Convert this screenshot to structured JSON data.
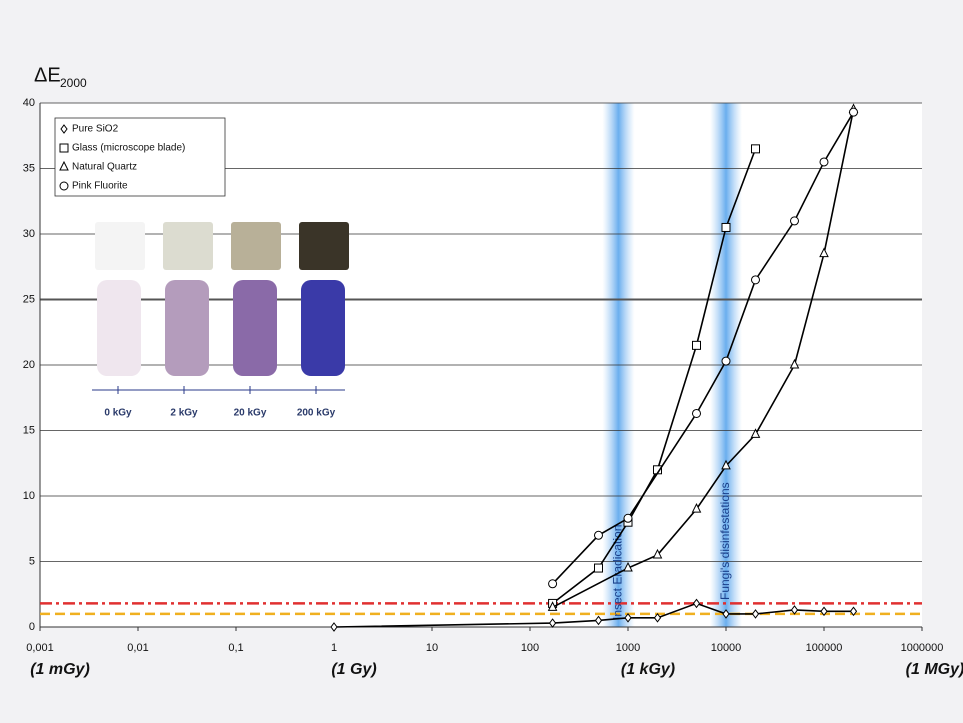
{
  "chart_data": {
    "type": "scatter",
    "ylabel": "ΔE",
    "ylabel_subscript": "2000",
    "xscale": "log",
    "xlim": [
      0.001,
      1000000
    ],
    "ylim": [
      0,
      40
    ],
    "xticks": [
      {
        "value": 0.001,
        "label": "0,001"
      },
      {
        "value": 0.01,
        "label": "0,01"
      },
      {
        "value": 0.1,
        "label": "0,1"
      },
      1,
      10,
      100,
      1000,
      10000,
      100000,
      1000000
    ],
    "yticks": [
      0,
      5,
      10,
      15,
      20,
      25,
      30,
      35,
      40
    ],
    "x_unit_labels": [
      {
        "value": 0.001,
        "label": "(1 mGy)"
      },
      {
        "value": 1,
        "label": "(1 Gy)"
      },
      {
        "value": 1000,
        "label": "(1 kGy)"
      },
      {
        "value": 1000000,
        "label": "(1 MGy)"
      }
    ],
    "grid": true,
    "legend": "upper left",
    "series": [
      {
        "name": "Pure SiO2",
        "color": "#000000",
        "marker": "diamond",
        "x": [
          1,
          170,
          500,
          1000,
          2000,
          5000,
          10000,
          20000,
          50000,
          100000,
          200000
        ],
        "values": [
          0,
          0.3,
          0.5,
          0.7,
          0.7,
          1.8,
          1,
          1,
          1.3,
          1.2,
          1.2
        ]
      },
      {
        "name": "Glass (microscope blade)",
        "color": "#000000",
        "marker": "square",
        "x": [
          170,
          500,
          1000,
          2000,
          5000,
          10000,
          20000
        ],
        "values": [
          1.8,
          4.5,
          8,
          12,
          21.5,
          30.5,
          36.5
        ]
      },
      {
        "name": "Natural Quartz",
        "color": "#000000",
        "marker": "triangle",
        "x": [
          170,
          1000,
          2000,
          5000,
          10000,
          20000,
          50000,
          100000,
          200000
        ],
        "values": [
          1.5,
          4.5,
          5.5,
          9,
          12.3,
          14.7,
          20,
          28.5,
          39.5
        ]
      },
      {
        "name": "Pink Fluorite",
        "color": "#000000",
        "marker": "circle",
        "x": [
          170,
          500,
          1000,
          5000,
          10000,
          20000,
          50000,
          100000,
          200000
        ],
        "values": [
          3.3,
          7,
          8.3,
          16.3,
          20.3,
          26.5,
          31,
          35.5,
          39.3
        ]
      }
    ],
    "reference_lines": [
      {
        "value": 1.8,
        "color": "#e03030",
        "style": "dashdot"
      },
      {
        "value": 1,
        "color": "#f0b020",
        "style": "dash"
      }
    ],
    "bands": [
      {
        "x": 800,
        "label": "Insect Eradication"
      },
      {
        "x": 10000,
        "label": "Fungi's disinfestations"
      }
    ],
    "inset_labels": [
      "0 kGy",
      "2 kGy",
      "20 kGy",
      "200 kGy"
    ]
  }
}
